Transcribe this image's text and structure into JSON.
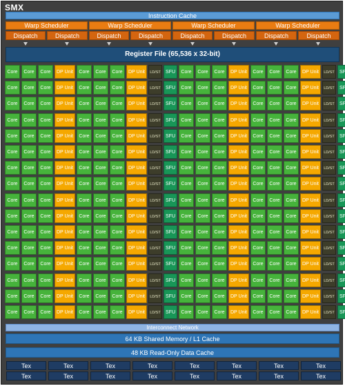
{
  "title": "SMX",
  "instruction_cache": "Instruction Cache",
  "warp_scheduler_label": "Warp Scheduler",
  "dispatch_label": "Dispatch",
  "register_file": "Register File (65,536 x 32-bit)",
  "unit_labels": {
    "core": "Core",
    "dp": "DP Unit",
    "ldst": "LD/ST",
    "sfu": "SFU"
  },
  "row_pattern": [
    "core",
    "core",
    "core",
    "dp",
    "core",
    "core",
    "core",
    "dp",
    "ldst",
    "sfu",
    "core",
    "core",
    "core",
    "dp",
    "core",
    "core",
    "core",
    "dp",
    "ldst",
    "sfu"
  ],
  "row_count": 16,
  "interconnect": "Interconnect Network",
  "shared_memory": "64 KB Shared Memory / L1 Cache",
  "readonly_cache": "48 KB Read-Only Data Cache",
  "tex_label": "Tex",
  "colors": {
    "background": "#3f3f3f",
    "core": "#46b33b",
    "dp_unit": "#f5a800",
    "ldst": "#3d3d2a",
    "sfu": "#189657",
    "warp_scheduler": "#e97c12",
    "register_file": "#1f4e79",
    "cache": "#2e75b6",
    "tex": "#1f3c63"
  }
}
